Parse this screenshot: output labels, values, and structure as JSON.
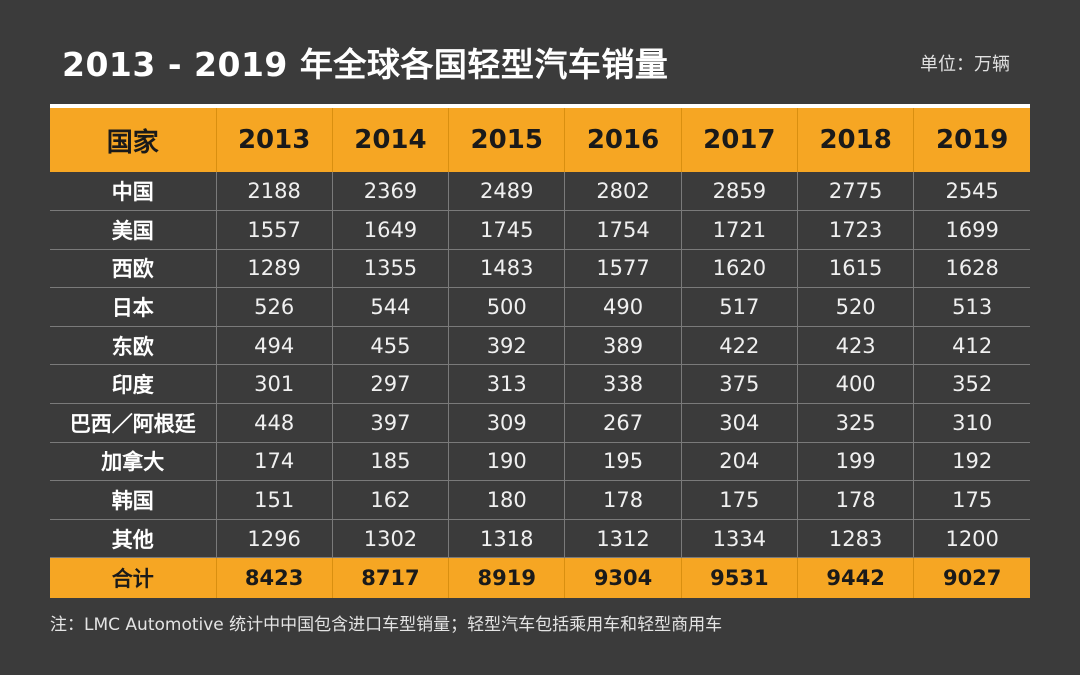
{
  "title": "2013 - 2019 年全球各国轻型汽车销量",
  "unit": "单位：万辆",
  "note": "注：LMC Automotive 统计中中国包含进口车型销量；轻型汽车包括乘用车和轻型商用车",
  "colors": {
    "background": "#3b3b3b",
    "accent": "#f6a623"
  },
  "chart_data": {
    "type": "table",
    "title": "2013 - 2019 年全球各国轻型汽车销量",
    "unit": "单位：万辆",
    "columns": [
      "国家",
      "2013",
      "2014",
      "2015",
      "2016",
      "2017",
      "2018",
      "2019"
    ],
    "rows": [
      {
        "country": "中国",
        "values": [
          "2188",
          "2369",
          "2489",
          "2802",
          "2859",
          "2775",
          "2545"
        ]
      },
      {
        "country": "美国",
        "values": [
          "1557",
          "1649",
          "1745",
          "1754",
          "1721",
          "1723",
          "1699"
        ]
      },
      {
        "country": "西欧",
        "values": [
          "1289",
          "1355",
          "1483",
          "1577",
          "1620",
          "1615",
          "1628"
        ]
      },
      {
        "country": "日本",
        "values": [
          "526",
          "544",
          "500",
          "490",
          "517",
          "520",
          "513"
        ]
      },
      {
        "country": "东欧",
        "values": [
          "494",
          "455",
          "392",
          "389",
          "422",
          "423",
          "412"
        ]
      },
      {
        "country": "印度",
        "values": [
          "301",
          "297",
          "313",
          "338",
          "375",
          "400",
          "352"
        ]
      },
      {
        "country": "巴西／阿根廷",
        "values": [
          "448",
          "397",
          "309",
          "267",
          "304",
          "325",
          "310"
        ]
      },
      {
        "country": "加拿大",
        "values": [
          "174",
          "185",
          "190",
          "195",
          "204",
          "199",
          "192"
        ]
      },
      {
        "country": "韩国",
        "values": [
          "151",
          "162",
          "180",
          "178",
          "175",
          "178",
          "175"
        ]
      },
      {
        "country": "其他",
        "values": [
          "1296",
          "1302",
          "1318",
          "1312",
          "1334",
          "1283",
          "1200"
        ]
      }
    ],
    "total": {
      "label": "合计",
      "values": [
        "8423",
        "8717",
        "8919",
        "9304",
        "9531",
        "9442",
        "9027"
      ]
    }
  }
}
